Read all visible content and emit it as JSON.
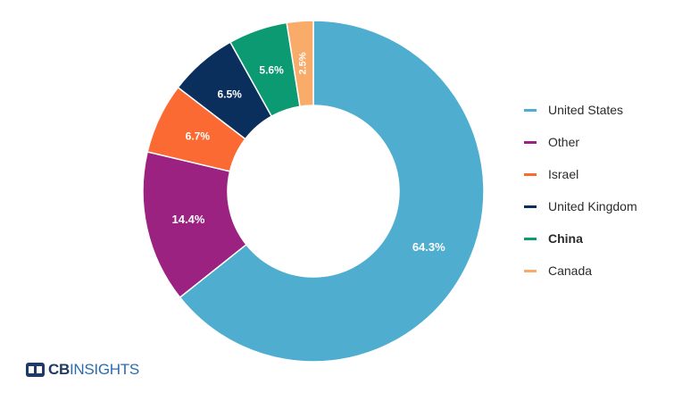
{
  "chart_data": {
    "type": "pie",
    "donut": true,
    "slices": [
      {
        "label": "United States",
        "value": 64.3,
        "display": "64.3%",
        "color": "#4fadd0"
      },
      {
        "label": "Other",
        "value": 14.4,
        "display": "14.4%",
        "color": "#9c2282"
      },
      {
        "label": "Israel",
        "value": 6.7,
        "display": "6.7%",
        "color": "#fa6a32"
      },
      {
        "label": "United Kingdom",
        "value": 6.5,
        "display": "6.5%",
        "color": "#0a2f5c"
      },
      {
        "label": "China",
        "value": 5.6,
        "display": "5.6%",
        "color": "#0b9a72"
      },
      {
        "label": "Canada",
        "value": 2.5,
        "display": "2.5%",
        "color": "#f9ab6a"
      }
    ],
    "legend_placement": "right",
    "legend_bold": [
      "China"
    ]
  },
  "brand": {
    "bold": "CB",
    "light": "INSIGHTS"
  }
}
